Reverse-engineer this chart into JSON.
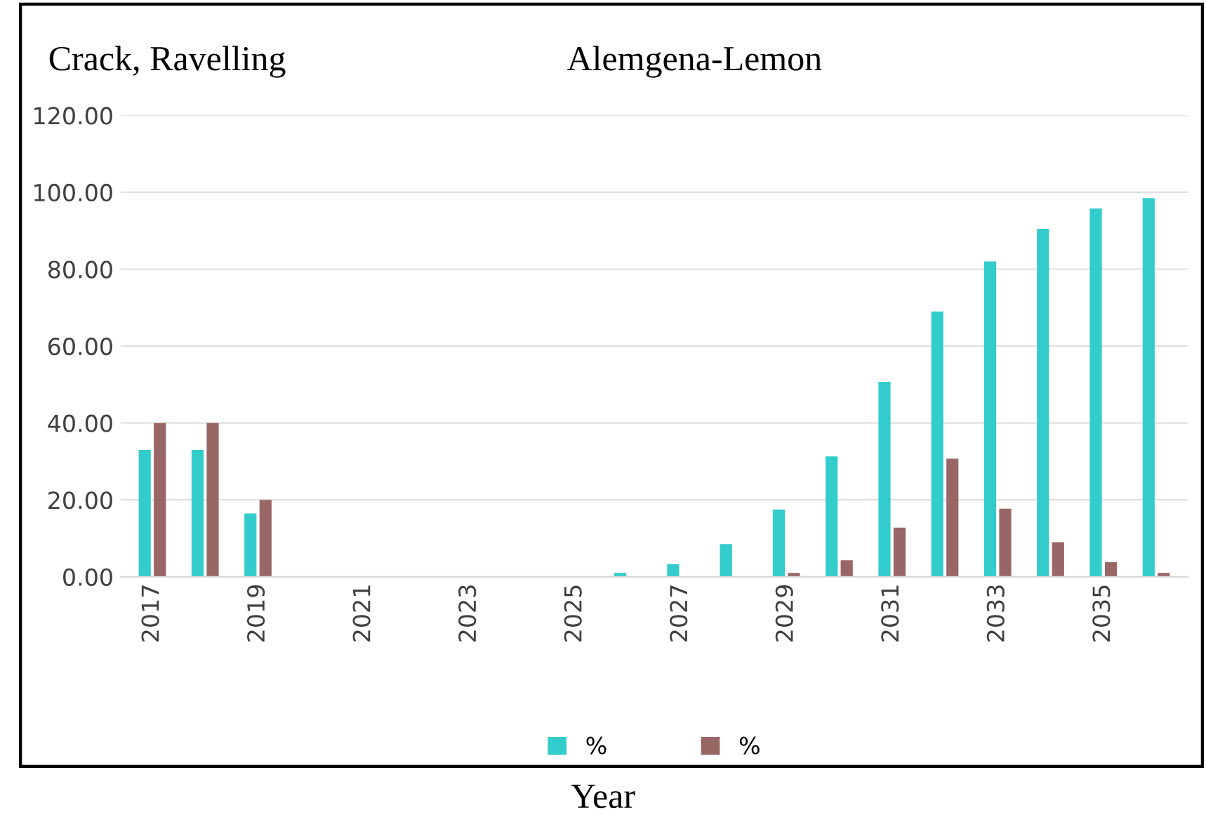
{
  "chart_data": {
    "type": "bar",
    "title": "Crack, Ravelling",
    "subtitle": "Alemgena-Lemon",
    "xlabel": "Year",
    "categories": [
      "2017",
      null,
      "2019",
      null,
      "2021",
      null,
      "2023",
      null,
      "2025",
      null,
      "2027",
      null,
      "2029",
      null,
      "2031",
      null,
      "2033",
      null,
      "2035",
      null
    ],
    "series": [
      {
        "name": "%",
        "color": "#33cccc",
        "values": [
          33,
          33,
          16.5,
          0,
          0,
          0,
          0,
          0,
          0,
          1,
          3.3,
          8.5,
          17.5,
          31.3,
          50.7,
          69,
          82,
          90.5,
          95.8,
          98.5
        ]
      },
      {
        "name": "%",
        "color": "#996666",
        "values": [
          40,
          40,
          20,
          0,
          0,
          0,
          0,
          0,
          0,
          0,
          0,
          0,
          1,
          4.3,
          12.8,
          30.7,
          17.7,
          9,
          3.8,
          1
        ]
      }
    ],
    "ylim": [
      0,
      120
    ],
    "yticks": [
      {
        "value": 0,
        "label": "0.00"
      },
      {
        "value": 20,
        "label": "20.00"
      },
      {
        "value": 40,
        "label": "40.00"
      },
      {
        "value": 60,
        "label": "60.00"
      },
      {
        "value": 80,
        "label": "80.00"
      },
      {
        "value": 100,
        "label": "100.00"
      },
      {
        "value": 120,
        "label": "120.00"
      }
    ],
    "grid": "y",
    "legend": "bottom"
  }
}
